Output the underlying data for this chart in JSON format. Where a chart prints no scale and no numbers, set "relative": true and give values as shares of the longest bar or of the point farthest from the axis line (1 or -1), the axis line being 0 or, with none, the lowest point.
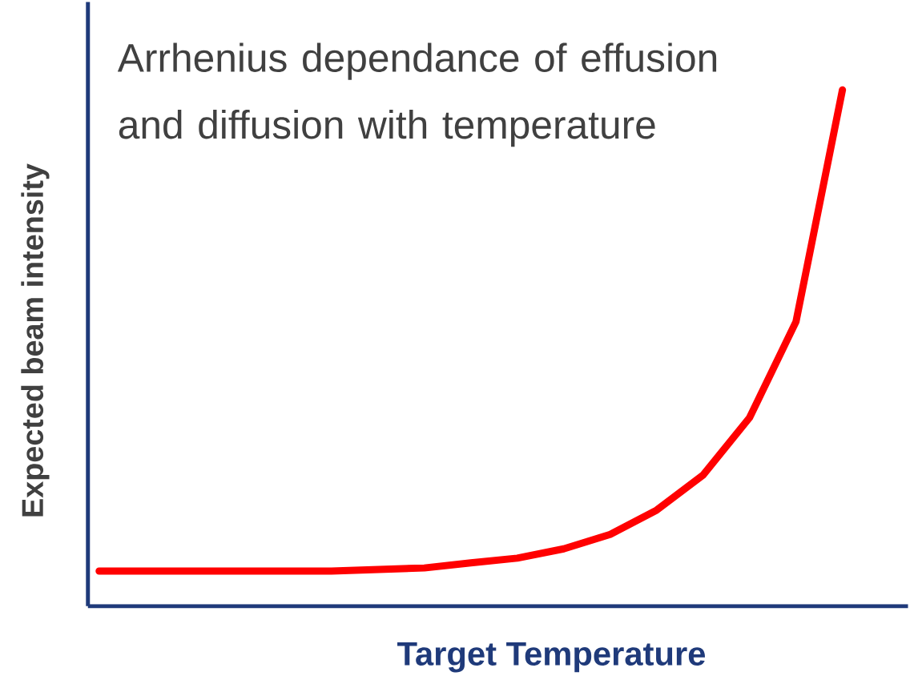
{
  "chart_data": {
    "type": "line",
    "relative": true,
    "xlabel": "Target Temperature",
    "ylabel": "Expected beam intensity",
    "annotations": [
      "Arrhenius dependance of effusion and diffusion with temperature"
    ],
    "categories": [
      null,
      null,
      null,
      null,
      null,
      null,
      null,
      null,
      null,
      null,
      null,
      null,
      null,
      null,
      null,
      null,
      null
    ],
    "series": [
      {
        "color": "#ff0000",
        "values": [
          0.068,
          0.068,
          0.068,
          0.068,
          0.068,
          0.068,
          0.071,
          0.074,
          0.084,
          0.093,
          0.111,
          0.139,
          0.186,
          0.254,
          0.365,
          0.551,
          1
        ]
      }
    ],
    "line_style": "solid"
  }
}
